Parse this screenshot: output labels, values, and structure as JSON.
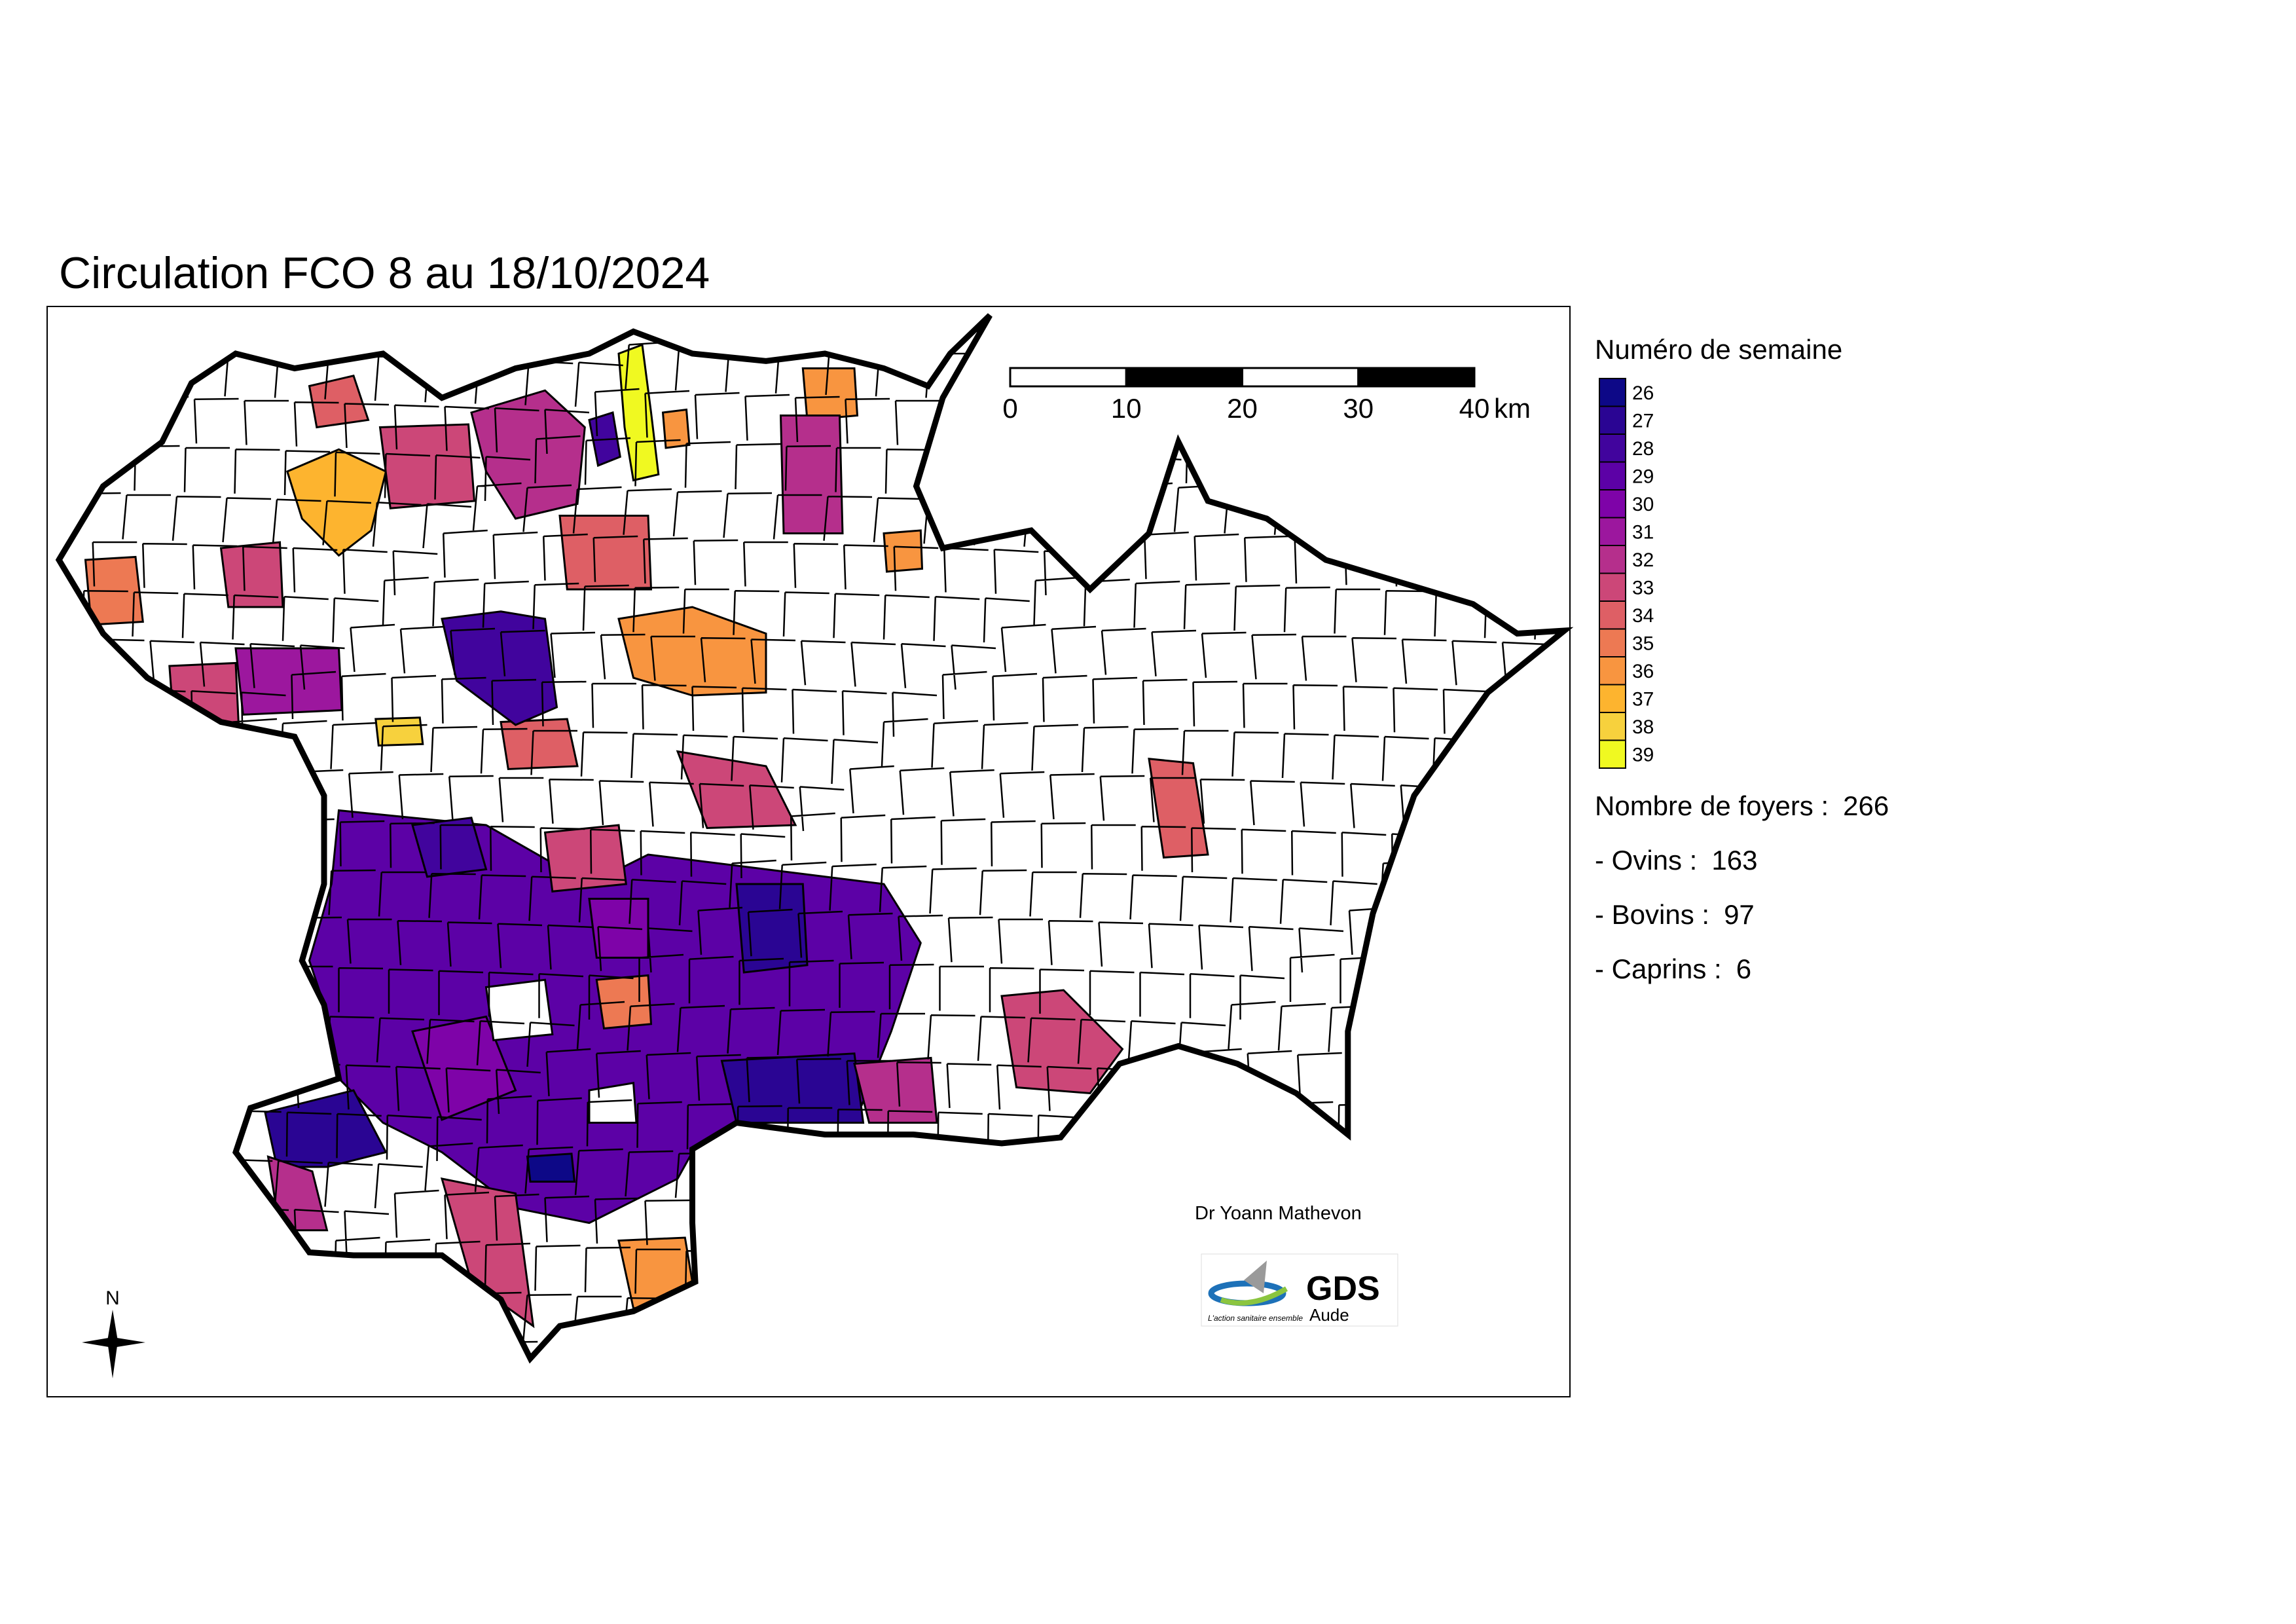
{
  "title": "Circulation FCO 8 au 18/10/2024",
  "legend": {
    "title": "Numéro de semaine",
    "items": [
      {
        "value": 26,
        "color": "#0d0887"
      },
      {
        "value": 27,
        "color": "#2a0593"
      },
      {
        "value": 28,
        "color": "#41049d"
      },
      {
        "value": 29,
        "color": "#5c01a6"
      },
      {
        "value": 30,
        "color": "#7e03a8"
      },
      {
        "value": 31,
        "color": "#9c179e"
      },
      {
        "value": 32,
        "color": "#b52f8c"
      },
      {
        "value": 33,
        "color": "#cc4778"
      },
      {
        "value": 34,
        "color": "#de5f65"
      },
      {
        "value": 35,
        "color": "#ed7953"
      },
      {
        "value": 36,
        "color": "#f89540"
      },
      {
        "value": 37,
        "color": "#fdb42f"
      },
      {
        "value": 38,
        "color": "#f7d13d"
      },
      {
        "value": 39,
        "color": "#f0f921"
      }
    ]
  },
  "stats": [
    {
      "label": "Nombre de foyers :",
      "value": 266
    },
    {
      "label": "- Ovins :",
      "value": 163
    },
    {
      "label": "- Bovins :",
      "value": 97
    },
    {
      "label": "- Caprins :",
      "value": 6
    }
  ],
  "scale": {
    "ticks": [
      0,
      10,
      20,
      30,
      40
    ],
    "unit": "km"
  },
  "author": "Dr Yoann Mathevon",
  "north": "N",
  "logo": {
    "name": "GDS",
    "sub": "Aude",
    "tagline": "L'action sanitaire ensemble"
  }
}
